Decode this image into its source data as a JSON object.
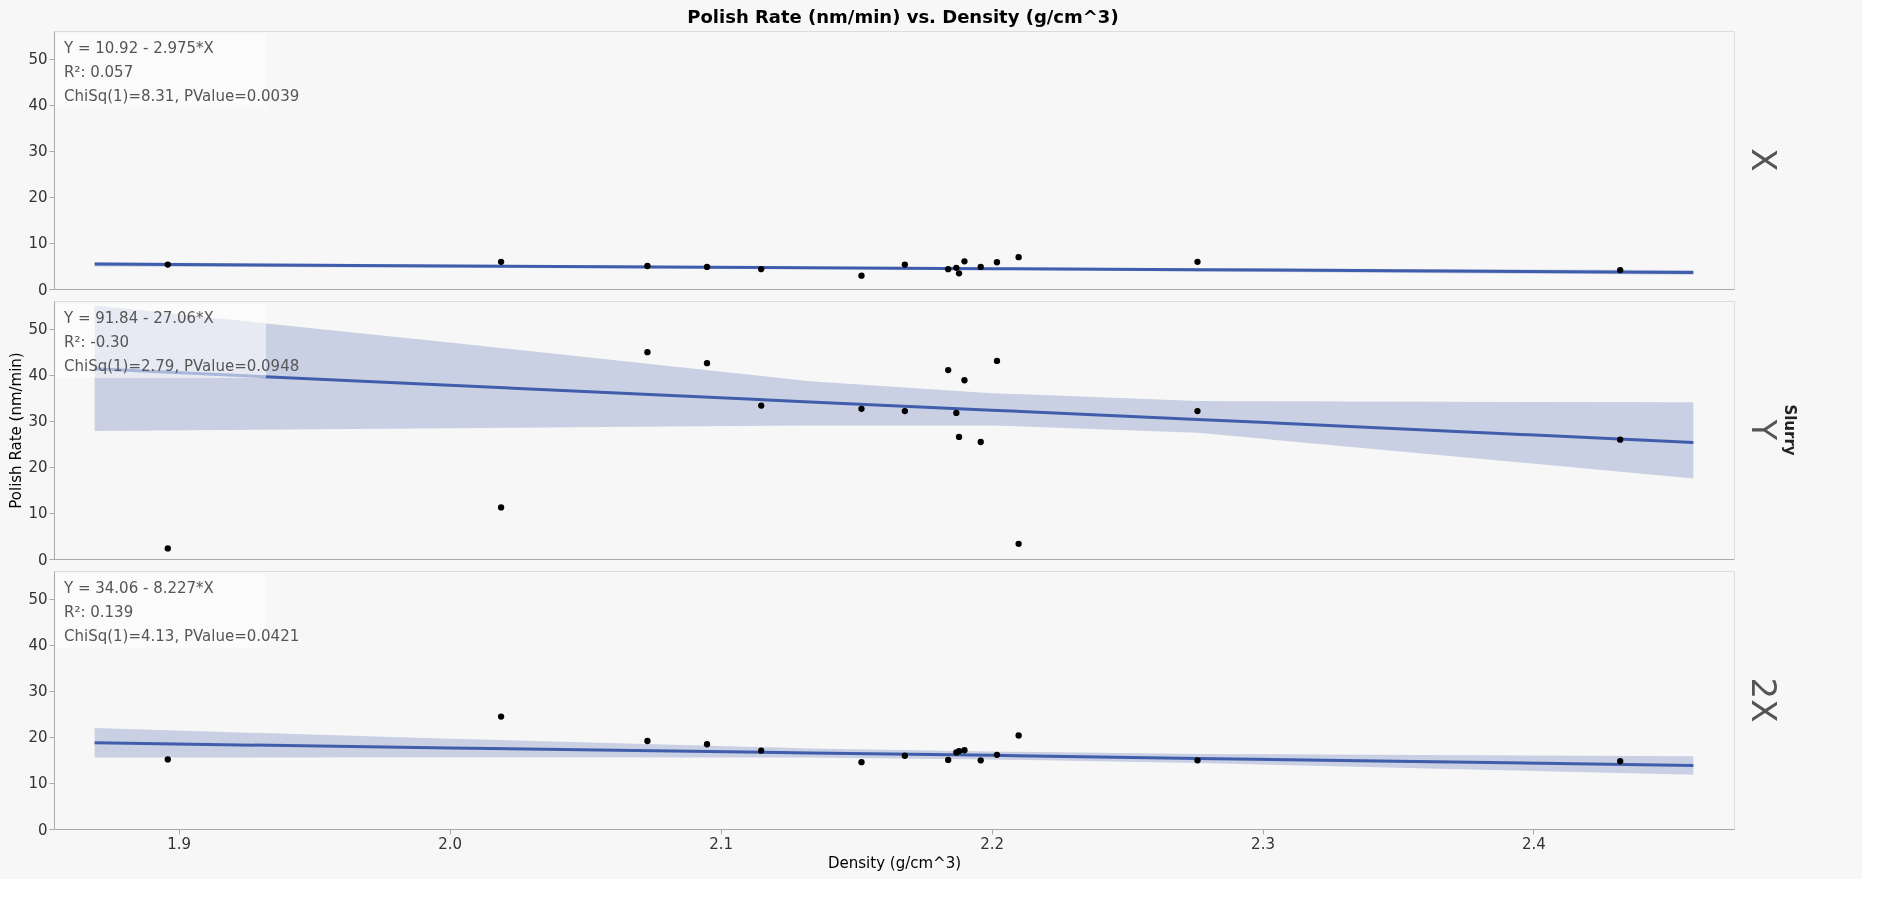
{
  "chart_data": [
    {
      "type": "scatter",
      "title": "Polish Rate (nm/min) vs. Density (g/cm^3)",
      "subtitle": "X",
      "annotations": [
        "Y = 10.92 - 2.975*X",
        "R²: 0.057",
        "ChiSq(1)=8.31, PValue=0.0039"
      ],
      "xlim": [
        1.854,
        2.474
      ],
      "xticks": [
        1.9,
        2.0,
        2.1,
        2.2,
        2.3,
        2.4
      ],
      "ylim": [
        0,
        56
      ],
      "yticks": [
        0,
        10,
        20,
        30,
        40,
        50
      ],
      "tick_labels": "y",
      "grid": false,
      "marker": "circle",
      "series": [
        {
          "type": "line",
          "marker": "none",
          "line_style": "solid",
          "color": "#3f5dab",
          "x": [
            1.869,
            2.0,
            2.133,
            2.2,
            2.276,
            2.459
          ],
          "values": [
            5.4,
            5.0,
            4.6,
            4.4,
            4.2,
            3.6
          ],
          "lower": [
            4.9,
            4.6,
            4.3,
            4.1,
            3.8,
            3.1
          ],
          "upper": [
            5.8,
            5.3,
            4.8,
            4.6,
            4.5,
            4.1
          ]
        },
        {
          "color": "#000000",
          "x": [
            1.896,
            2.019,
            2.073,
            2.095,
            2.115,
            2.152,
            2.168,
            2.184,
            2.187,
            2.188,
            2.19,
            2.196,
            2.202,
            2.21,
            2.276,
            2.432
          ],
          "values": [
            5.3,
            5.9,
            5.0,
            4.8,
            4.3,
            2.9,
            5.3,
            4.3,
            4.6,
            3.4,
            6.0,
            4.8,
            5.8,
            6.9,
            5.9,
            4.1
          ]
        }
      ]
    },
    {
      "type": "scatter",
      "subtitle": "Y",
      "ylabel": "Polish Rate (nm/min)",
      "y2label": "Slurry",
      "annotations": [
        "Y = 91.84 - 27.06*X",
        "R²: -0.30",
        "ChiSq(1)=2.79, PValue=0.0948"
      ],
      "xlim": [
        1.854,
        2.474
      ],
      "xticks": [
        1.9,
        2.0,
        2.1,
        2.2,
        2.3,
        2.4
      ],
      "ylim": [
        0,
        56
      ],
      "yticks": [
        0,
        10,
        20,
        30,
        40,
        50
      ],
      "tick_labels": "y",
      "grid": false,
      "marker": "circle",
      "series": [
        {
          "type": "line",
          "marker": "none",
          "line_style": "solid",
          "color": "#3f5dab",
          "x": [
            1.869,
            2.0,
            2.133,
            2.2,
            2.276,
            2.459
          ],
          "values": [
            41.3,
            37.7,
            34.1,
            32.3,
            30.3,
            25.3
          ],
          "lower": [
            27.8,
            28.4,
            29.0,
            29.0,
            27.4,
            17.5
          ],
          "upper": [
            55.0,
            47.0,
            38.6,
            36.0,
            34.3,
            34.0
          ]
        },
        {
          "color": "#000000",
          "x": [
            1.896,
            2.019,
            2.073,
            2.095,
            2.115,
            2.152,
            2.168,
            2.184,
            2.187,
            2.188,
            2.19,
            2.196,
            2.202,
            2.21,
            2.276,
            2.432
          ],
          "values": [
            2.3,
            11.2,
            44.9,
            42.5,
            33.3,
            32.6,
            32.1,
            41.0,
            31.7,
            26.5,
            38.8,
            25.4,
            43.0,
            3.3,
            32.1,
            25.9
          ]
        }
      ]
    },
    {
      "type": "scatter",
      "subtitle": "2X",
      "xlabel": "Density (g/cm^3)",
      "annotations": [
        "Y = 34.06 - 8.227*X",
        "R²: 0.139",
        "ChiSq(1)=4.13, PValue=0.0421"
      ],
      "xlim": [
        1.854,
        2.474
      ],
      "xticks": [
        1.9,
        {
          "value": 2,
          "label": "2.0"
        },
        2.1,
        2.2,
        2.3,
        2.4
      ],
      "ylim": [
        0,
        56
      ],
      "yticks": [
        0,
        10,
        20,
        30,
        40,
        50
      ],
      "grid": false,
      "marker": "circle",
      "series": [
        {
          "type": "line",
          "marker": "none",
          "line_style": "solid",
          "color": "#3f5dab",
          "x": [
            1.869,
            2.0,
            2.133,
            2.2,
            2.276,
            2.459
          ],
          "values": [
            18.7,
            17.6,
            16.5,
            16.0,
            15.3,
            13.8
          ],
          "lower": [
            15.5,
            15.6,
            15.5,
            15.1,
            14.3,
            11.8
          ],
          "upper": [
            21.9,
            19.6,
            17.5,
            16.8,
            16.3,
            15.8
          ]
        },
        {
          "color": "#000000",
          "x": [
            1.896,
            2.019,
            2.073,
            2.095,
            2.115,
            2.152,
            2.168,
            2.184,
            2.187,
            2.188,
            2.19,
            2.196,
            2.202,
            2.21,
            2.276,
            2.432
          ],
          "values": [
            15.1,
            24.4,
            19.1,
            18.4,
            17.0,
            14.5,
            15.9,
            15.0,
            16.6,
            16.9,
            17.1,
            14.9,
            16.1,
            20.3,
            14.9,
            14.7
          ]
        }
      ]
    }
  ]
}
